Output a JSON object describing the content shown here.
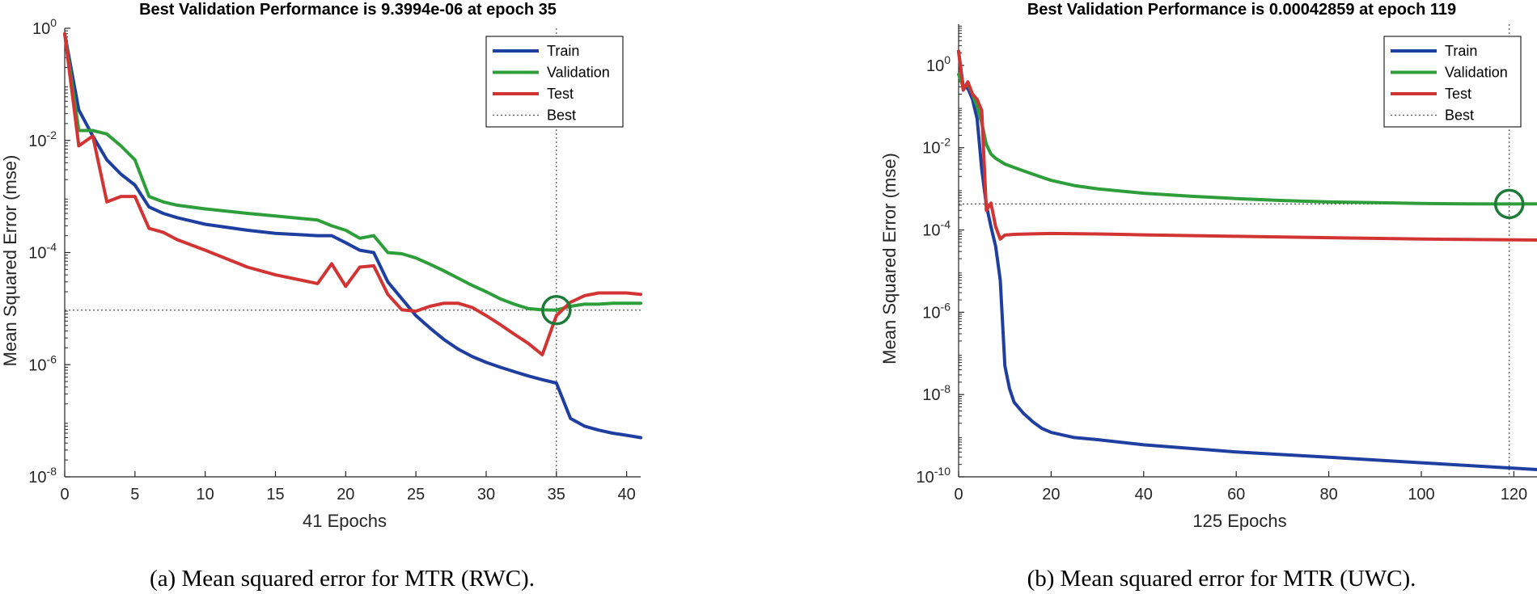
{
  "chart_data": [
    {
      "type": "line",
      "title": "Best Validation Performance is 9.3994e-06 at epoch 35",
      "xlabel": "41 Epochs",
      "ylabel": "Mean Squared Error  (mse)",
      "yscale": "log",
      "xlim": [
        0,
        41
      ],
      "ylim": [
        1e-08,
        1
      ],
      "xticks": [
        0,
        5,
        10,
        15,
        20,
        25,
        30,
        35,
        40
      ],
      "yticks": [
        {
          "base": "10",
          "exp": "0"
        },
        {
          "base": "10",
          "exp": "-2"
        },
        {
          "base": "10",
          "exp": "-4"
        },
        {
          "base": "10",
          "exp": "-6"
        },
        {
          "base": "10",
          "exp": "-8"
        }
      ],
      "ytick_values": [
        1,
        0.01,
        0.0001,
        1e-06,
        1e-08
      ],
      "best": {
        "epoch": 35,
        "value": 9.3994e-06
      },
      "legend_position": "top-right",
      "caption": "(a) Mean squared error for MTR (RWC).",
      "series": [
        {
          "name": "Train",
          "color": "#1f3fa0",
          "x": [
            0,
            1,
            2,
            3,
            4,
            5,
            6,
            7,
            8,
            10,
            13,
            15,
            18,
            19,
            20,
            21,
            22,
            23,
            24,
            25,
            26,
            27,
            28,
            29,
            30,
            31,
            32,
            33,
            34,
            35,
            36,
            37,
            38,
            39,
            40,
            41
          ],
          "y": [
            0.8,
            0.035,
            0.012,
            0.0045,
            0.0025,
            0.0016,
            0.00065,
            0.0005,
            0.00042,
            0.00032,
            0.00025,
            0.00022,
            0.0002,
            0.0002,
            0.00015,
            0.00011,
            0.0001,
            3e-05,
            1.5e-05,
            7.5e-06,
            4.5e-06,
            2.8e-06,
            1.9e-06,
            1.4e-06,
            1.1e-06,
            9e-07,
            7.5e-07,
            6.3e-07,
            5.4e-07,
            4.7e-07,
            1.1e-07,
            8e-08,
            6.8e-08,
            6e-08,
            5.5e-08,
            5e-08
          ]
        },
        {
          "name": "Validation",
          "color": "#2e9e3a",
          "x": [
            0,
            1,
            2,
            3,
            4,
            5,
            6,
            7,
            8,
            10,
            13,
            15,
            18,
            19,
            20,
            21,
            22,
            23,
            24,
            25,
            26,
            27,
            28,
            29,
            30,
            31,
            32,
            33,
            34,
            35,
            36,
            37,
            38,
            39,
            40,
            41
          ],
          "y": [
            0.8,
            0.015,
            0.015,
            0.013,
            0.008,
            0.0045,
            0.001,
            0.0008,
            0.0007,
            0.0006,
            0.0005,
            0.00045,
            0.00038,
            0.0003,
            0.00025,
            0.00018,
            0.0002,
            0.0001,
            9.5e-05,
            8e-05,
            6.2e-05,
            4.7e-05,
            3.5e-05,
            2.6e-05,
            2e-05,
            1.5e-05,
            1.2e-05,
            1e-05,
            9.5e-06,
            9.4e-06,
            1.1e-05,
            1.2e-05,
            1.2e-05,
            1.25e-05,
            1.25e-05,
            1.25e-05
          ]
        },
        {
          "name": "Test",
          "color": "#d23434",
          "x": [
            0,
            1,
            2,
            3,
            4,
            5,
            6,
            7,
            8,
            10,
            13,
            15,
            18,
            19,
            20,
            21,
            22,
            23,
            24,
            25,
            26,
            27,
            28,
            29,
            30,
            31,
            32,
            33,
            34,
            35,
            36,
            37,
            38,
            39,
            40,
            41
          ],
          "y": [
            0.8,
            0.008,
            0.012,
            0.0008,
            0.001,
            0.001,
            0.00027,
            0.00023,
            0.00017,
            0.00011,
            5.5e-05,
            4e-05,
            2.8e-05,
            6.3e-05,
            2.5e-05,
            5.5e-05,
            5.8e-05,
            1.8e-05,
            9.5e-06,
            9e-06,
            1.1e-05,
            1.25e-05,
            1.25e-05,
            1.05e-05,
            7.5e-06,
            5.2e-06,
            3.5e-06,
            2.4e-06,
            1.5e-06,
            7.5e-06,
            1.3e-05,
            1.7e-05,
            1.9e-05,
            1.9e-05,
            1.9e-05,
            1.8e-05
          ]
        },
        {
          "name": "Best",
          "color": "#555555",
          "style": "dotted"
        }
      ]
    },
    {
      "type": "line",
      "title": "Best Validation Performance is 0.00042859 at epoch 119",
      "xlabel": "125 Epochs",
      "ylabel": "Mean Squared Error  (mse)",
      "yscale": "log",
      "xlim": [
        0,
        125
      ],
      "ylim": [
        1e-10,
        10
      ],
      "xticks": [
        0,
        20,
        40,
        60,
        80,
        100,
        120
      ],
      "yticks": [
        {
          "base": "10",
          "exp": "0"
        },
        {
          "base": "10",
          "exp": "-2"
        },
        {
          "base": "10",
          "exp": "-4"
        },
        {
          "base": "10",
          "exp": "-6"
        },
        {
          "base": "10",
          "exp": "-8"
        },
        {
          "base": "10",
          "exp": "-10"
        }
      ],
      "ytick_values": [
        1,
        0.01,
        0.0001,
        1e-06,
        1e-08,
        1e-10
      ],
      "best": {
        "epoch": 119,
        "value": 0.00042859
      },
      "legend_position": "top-right",
      "caption": "(b) Mean squared error for MTR (UWC).",
      "series": [
        {
          "name": "Train",
          "color": "#1f3fa0",
          "x": [
            0,
            1,
            2,
            3,
            4,
            5,
            6,
            7,
            8,
            9,
            10,
            11,
            12,
            14,
            16,
            18,
            20,
            25,
            30,
            40,
            60,
            80,
            100,
            125
          ],
          "y": [
            2.2,
            0.3,
            0.28,
            0.15,
            0.05,
            0.003,
            0.0004,
            0.00012,
            4e-05,
            6e-06,
            5e-08,
            1.4e-08,
            6.5e-09,
            3.5e-09,
            2.2e-09,
            1.5e-09,
            1.2e-09,
            9e-10,
            8e-10,
            6e-10,
            4e-10,
            3e-10,
            2.2e-10,
            1.5e-10
          ]
        },
        {
          "name": "Validation",
          "color": "#2e9e3a",
          "x": [
            0,
            1,
            2,
            3,
            4,
            5,
            6,
            7,
            8,
            10,
            12,
            15,
            18,
            20,
            25,
            30,
            40,
            50,
            60,
            70,
            80,
            90,
            100,
            110,
            119,
            125
          ],
          "y": [
            0.6,
            0.3,
            0.35,
            0.2,
            0.1,
            0.04,
            0.012,
            0.007,
            0.0055,
            0.004,
            0.0033,
            0.0025,
            0.0019,
            0.0016,
            0.0012,
            0.001,
            0.00078,
            0.00066,
            0.00058,
            0.00052,
            0.00048,
            0.00046,
            0.00044,
            0.00043,
            0.00042859,
            0.00043
          ]
        },
        {
          "name": "Test",
          "color": "#d23434",
          "x": [
            0,
            1,
            2,
            3,
            4,
            5,
            6,
            7,
            8,
            9,
            10,
            12,
            15,
            20,
            30,
            40,
            60,
            80,
            100,
            125
          ],
          "y": [
            2.2,
            0.25,
            0.4,
            0.2,
            0.15,
            0.08,
            0.0003,
            0.00045,
            0.00012,
            6e-05,
            7.5e-05,
            7.8e-05,
            8e-05,
            8.2e-05,
            8e-05,
            7.6e-05,
            7e-05,
            6.5e-05,
            6e-05,
            5.7e-05
          ]
        },
        {
          "name": "Best",
          "color": "#555555",
          "style": "dotted"
        }
      ]
    }
  ]
}
